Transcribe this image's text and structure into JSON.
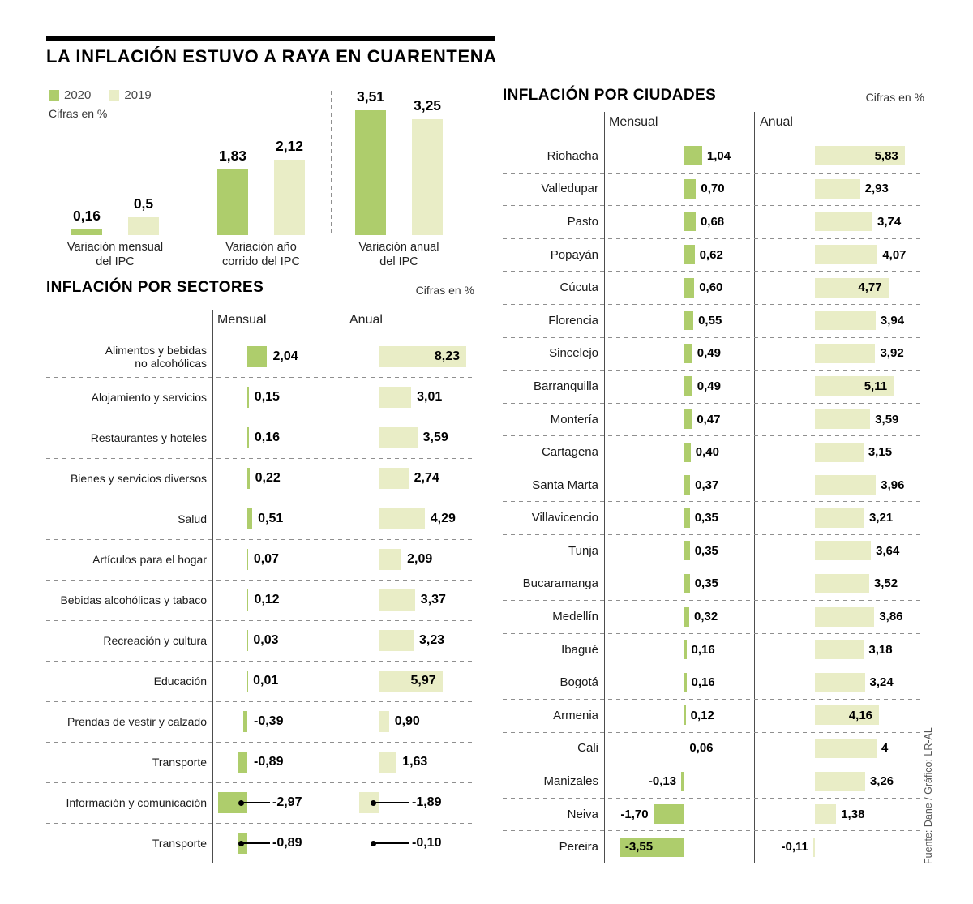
{
  "title": "LA INFLACIÓN ESTUVO A RAYA EN CUARENTENA",
  "source_credit": "Fuente: Dane / Gráfico: LR-AL",
  "colors": {
    "bar_2020": "#aecd6c",
    "bar_2019": "#e9edc6",
    "text": "#111111",
    "muted": "#4a4a4a",
    "dash": "#8f8f8f",
    "rule": "#000000"
  },
  "chart_data": [
    {
      "id": "summary",
      "type": "bar",
      "units": "Cifras en %",
      "legend_position": "top-left",
      "grid": false,
      "ylim": [
        0,
        3.6
      ],
      "legend": [
        {
          "label": "2020",
          "color_key": "bar_2020"
        },
        {
          "label": "2019",
          "color_key": "bar_2019"
        }
      ],
      "categories": [
        "Variación mensual\ndel IPC",
        "Variación año\ncorrido del IPC",
        "Variación anual\ndel IPC"
      ],
      "series": [
        {
          "name": "2020",
          "values": [
            0.16,
            1.83,
            3.51
          ],
          "labels": [
            "0,16",
            "1,83",
            "3,51"
          ]
        },
        {
          "name": "2019",
          "values": [
            0.5,
            2.12,
            3.25
          ],
          "labels": [
            "0,5",
            "2,12",
            "3,25"
          ]
        }
      ]
    },
    {
      "id": "sectors",
      "type": "bar",
      "orientation": "horizontal",
      "title": "INFLACIÓN POR SECTORES",
      "units": "Cifras en %",
      "columns": [
        "Mensual",
        "Anual"
      ],
      "categories": [
        "Alimentos y bebidas\nno alcohólicas",
        "Alojamiento y servicios",
        "Restaurantes y hoteles",
        "Bienes y servicios diversos",
        "Salud",
        "Artículos para el hogar",
        "Bebidas alcohólicas y tabaco",
        "Recreación y cultura",
        "Educación",
        "Prendas de vestir y calzado",
        "Transporte",
        "Información y comunicación",
        "Transporte"
      ],
      "series": [
        {
          "name": "Mensual",
          "values": [
            2.04,
            0.15,
            0.16,
            0.22,
            0.51,
            0.07,
            0.12,
            0.03,
            0.01,
            -0.39,
            -0.89,
            -2.97,
            -0.89
          ],
          "labels": [
            "2,04",
            "0,15",
            "0,16",
            "0,22",
            "0,51",
            "0,07",
            "0,12",
            "0,03",
            "0,01",
            "-0,39",
            "-0,89",
            "-2,97",
            "-0,89"
          ]
        },
        {
          "name": "Anual",
          "values": [
            8.23,
            3.01,
            3.59,
            2.74,
            4.29,
            2.09,
            3.37,
            3.23,
            5.97,
            0.9,
            1.63,
            -1.89,
            -0.1
          ],
          "labels": [
            "8,23",
            "3,01",
            "3,59",
            "2,74",
            "4,29",
            "2,09",
            "3,37",
            "3,23",
            "5,97",
            "0,90",
            "1,63",
            "-1,89",
            "-0,10"
          ]
        }
      ],
      "callout_rows": [
        11,
        12
      ]
    },
    {
      "id": "cities",
      "type": "bar",
      "orientation": "horizontal",
      "title": "INFLACIÓN POR CIUDADES",
      "units": "Cifras en %",
      "columns": [
        "Mensual",
        "Anual"
      ],
      "categories": [
        "Riohacha",
        "Valledupar",
        "Pasto",
        "Popayán",
        "Cúcuta",
        "Florencia",
        "Sincelejo",
        "Barranquilla",
        "Montería",
        "Cartagena",
        "Santa Marta",
        "Villavicencio",
        "Tunja",
        "Bucaramanga",
        "Medellín",
        "Ibagué",
        "Bogotá",
        "Armenia",
        "Cali",
        "Manizales",
        "Neiva",
        "Pereira"
      ],
      "series": [
        {
          "name": "Mensual",
          "values": [
            1.04,
            0.7,
            0.68,
            0.62,
            0.6,
            0.55,
            0.49,
            0.49,
            0.47,
            0.4,
            0.37,
            0.35,
            0.35,
            0.35,
            0.32,
            0.16,
            0.16,
            0.12,
            0.06,
            -0.13,
            -1.7,
            -3.55
          ],
          "labels": [
            "1,04",
            "0,70",
            "0,68",
            "0,62",
            "0,60",
            "0,55",
            "0,49",
            "0,49",
            "0,47",
            "0,40",
            "0,37",
            "0,35",
            "0,35",
            "0,35",
            "0,32",
            "0,16",
            "0,16",
            "0,12",
            "0,06",
            "-0,13",
            "-1,70",
            "-3,55"
          ]
        },
        {
          "name": "Anual",
          "values": [
            5.83,
            2.93,
            3.74,
            4.07,
            4.77,
            3.94,
            3.92,
            5.11,
            3.59,
            3.15,
            3.96,
            3.21,
            3.64,
            3.52,
            3.86,
            3.18,
            3.24,
            4.16,
            4,
            3.26,
            1.38,
            -0.11
          ],
          "labels": [
            "5,83",
            "2,93",
            "3,74",
            "4,07",
            "4,77",
            "3,94",
            "3,92",
            "5,11",
            "3,59",
            "3,15",
            "3,96",
            "3,21",
            "3,64",
            "3,52",
            "3,86",
            "3,18",
            "3,24",
            "4,16",
            "4",
            "3,26",
            "1,38",
            "-0,11"
          ]
        }
      ]
    }
  ]
}
